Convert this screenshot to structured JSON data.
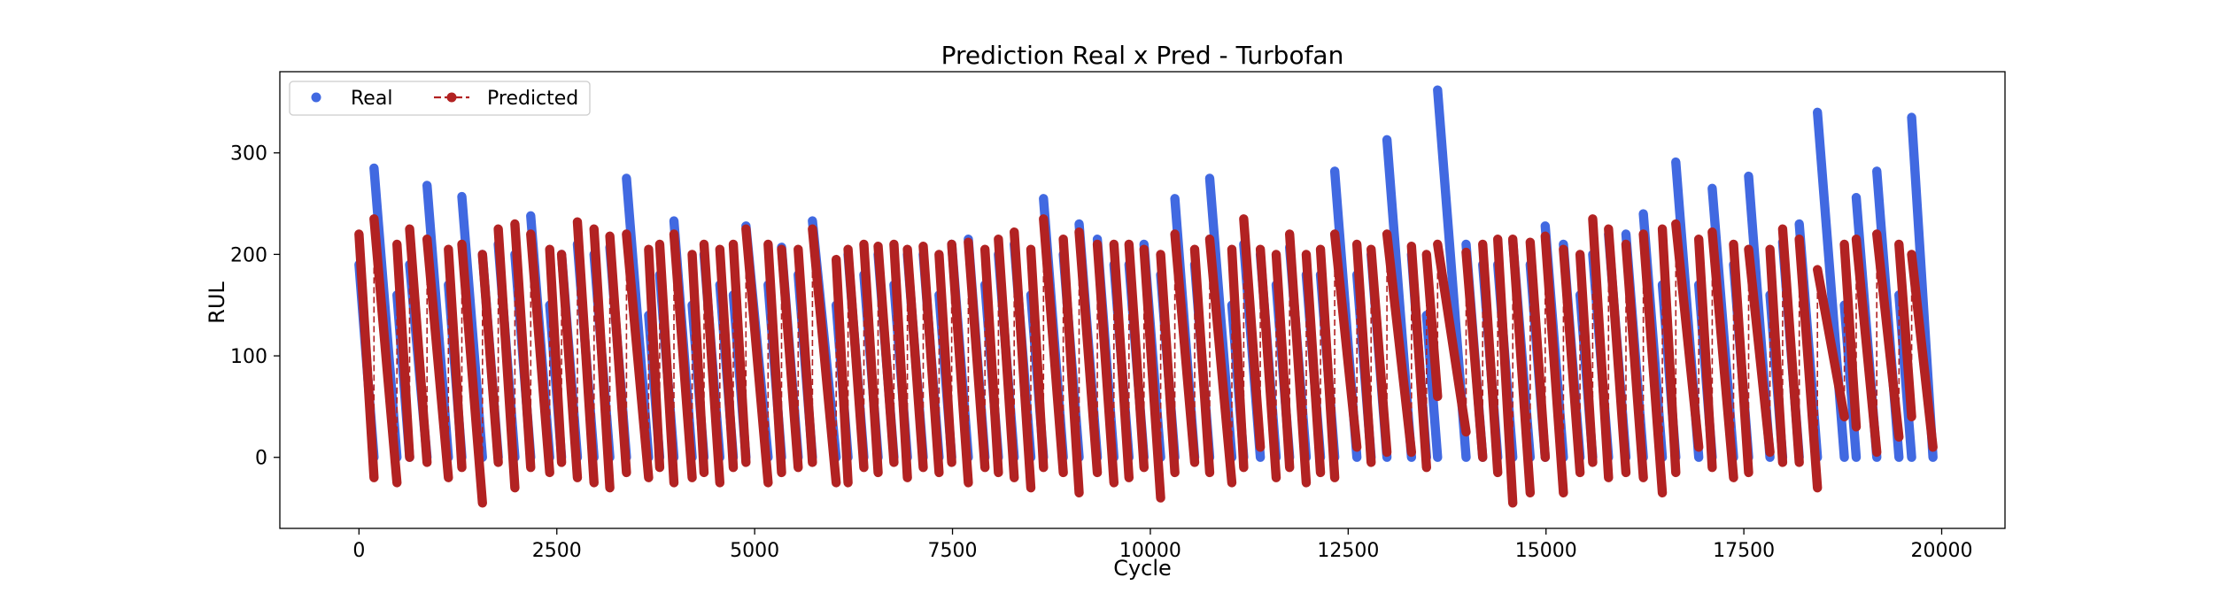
{
  "chart_data": {
    "type": "line",
    "title": "Prediction Real x Pred - Turbofan",
    "xlabel": "Cycle",
    "ylabel": "RUL",
    "xlim": [
      -1000,
      20800
    ],
    "ylim": [
      -70,
      380
    ],
    "xticks": [
      0,
      2500,
      5000,
      7500,
      10000,
      12500,
      15000,
      17500,
      20000
    ],
    "xtick_labels": [
      "0",
      "2500",
      "5000",
      "7500",
      "10000",
      "12500",
      "15000",
      "17500",
      "20000"
    ],
    "yticks": [
      0,
      100,
      200,
      300
    ],
    "ytick_labels": [
      "0",
      "100",
      "200",
      "300"
    ],
    "grid": false,
    "legend_position": "top-left",
    "colors": {
      "real": "#4169e1",
      "predicted": "#b22222"
    },
    "series": [
      {
        "name": "Real",
        "style": "markers",
        "note": "sawtooth RUL per engine unit: each segment [start_cycle, end_cycle, start_rul] descends linearly to 0",
        "segments": [
          [
            0,
            190,
            190
          ],
          [
            190,
            480,
            285
          ],
          [
            480,
            640,
            160
          ],
          [
            640,
            860,
            190
          ],
          [
            860,
            1130,
            268
          ],
          [
            1130,
            1300,
            170
          ],
          [
            1300,
            1560,
            257
          ],
          [
            1560,
            1760,
            200
          ],
          [
            1760,
            1970,
            210
          ],
          [
            1970,
            2170,
            200
          ],
          [
            2170,
            2410,
            238
          ],
          [
            2410,
            2560,
            150
          ],
          [
            2560,
            2760,
            200
          ],
          [
            2760,
            2970,
            210
          ],
          [
            2970,
            3170,
            200
          ],
          [
            3170,
            3380,
            207
          ],
          [
            3380,
            3660,
            275
          ],
          [
            3660,
            3800,
            140
          ],
          [
            3800,
            3980,
            180
          ],
          [
            3980,
            4210,
            233
          ],
          [
            4210,
            4360,
            150
          ],
          [
            4360,
            4560,
            200
          ],
          [
            4560,
            4730,
            170
          ],
          [
            4730,
            4890,
            160
          ],
          [
            4890,
            5170,
            228
          ],
          [
            5170,
            5340,
            170
          ],
          [
            5340,
            5550,
            207
          ],
          [
            5550,
            5730,
            180
          ],
          [
            5730,
            6030,
            233
          ],
          [
            6030,
            6180,
            150
          ],
          [
            6180,
            6380,
            200
          ],
          [
            6380,
            6560,
            180
          ],
          [
            6560,
            6760,
            200
          ],
          [
            6760,
            6930,
            170
          ],
          [
            6930,
            7130,
            200
          ],
          [
            7130,
            7330,
            200
          ],
          [
            7330,
            7490,
            160
          ],
          [
            7490,
            7700,
            210
          ],
          [
            7700,
            7910,
            215
          ],
          [
            7910,
            8080,
            170
          ],
          [
            8080,
            8280,
            200
          ],
          [
            8280,
            8490,
            210
          ],
          [
            8490,
            8650,
            160
          ],
          [
            8650,
            8900,
            255
          ],
          [
            8900,
            9100,
            200
          ],
          [
            9100,
            9330,
            230
          ],
          [
            9330,
            9540,
            215
          ],
          [
            9540,
            9730,
            190
          ],
          [
            9730,
            9920,
            190
          ],
          [
            9920,
            10130,
            210
          ],
          [
            10130,
            10310,
            180
          ],
          [
            10310,
            10560,
            255
          ],
          [
            10560,
            10750,
            190
          ],
          [
            10750,
            11030,
            275
          ],
          [
            11030,
            11180,
            150
          ],
          [
            11180,
            11390,
            210
          ],
          [
            11390,
            11590,
            200
          ],
          [
            11590,
            11760,
            170
          ],
          [
            11760,
            11970,
            207
          ],
          [
            11970,
            12150,
            180
          ],
          [
            12150,
            12330,
            180
          ],
          [
            12330,
            12610,
            282
          ],
          [
            12610,
            12790,
            180
          ],
          [
            12790,
            12990,
            200
          ],
          [
            12990,
            13300,
            313
          ],
          [
            13300,
            13490,
            200
          ],
          [
            13490,
            13630,
            140
          ],
          [
            13630,
            13990,
            362
          ],
          [
            13990,
            14200,
            210
          ],
          [
            14200,
            14390,
            190
          ],
          [
            14390,
            14580,
            190
          ],
          [
            14580,
            14800,
            213
          ],
          [
            14800,
            14990,
            190
          ],
          [
            14990,
            15220,
            228
          ],
          [
            15220,
            15430,
            210
          ],
          [
            15430,
            15590,
            160
          ],
          [
            15590,
            15790,
            200
          ],
          [
            15790,
            16010,
            220
          ],
          [
            16010,
            16230,
            220
          ],
          [
            16230,
            16470,
            240
          ],
          [
            16470,
            16640,
            170
          ],
          [
            16640,
            16930,
            291
          ],
          [
            16930,
            17100,
            170
          ],
          [
            17100,
            17370,
            265
          ],
          [
            17370,
            17560,
            190
          ],
          [
            17560,
            17830,
            277
          ],
          [
            17830,
            17990,
            160
          ],
          [
            17990,
            18200,
            212
          ],
          [
            18200,
            18430,
            230
          ],
          [
            18430,
            18770,
            340
          ],
          [
            18770,
            18920,
            150
          ],
          [
            18920,
            19180,
            256
          ],
          [
            19180,
            19460,
            282
          ],
          [
            19460,
            19620,
            160
          ],
          [
            19620,
            19890,
            335
          ]
        ]
      },
      {
        "name": "Predicted",
        "style": "dashed line with markers",
        "note": "predicted RUL per unit: segments [start_cycle, end_cycle, start_rul, end_rul]",
        "segments": [
          [
            0,
            190,
            220,
            -20
          ],
          [
            190,
            480,
            235,
            -25
          ],
          [
            480,
            640,
            210,
            0
          ],
          [
            640,
            860,
            225,
            -5
          ],
          [
            860,
            1130,
            215,
            -20
          ],
          [
            1130,
            1300,
            205,
            -10
          ],
          [
            1300,
            1560,
            210,
            -45
          ],
          [
            1560,
            1760,
            200,
            -5
          ],
          [
            1760,
            1970,
            225,
            -30
          ],
          [
            1970,
            2170,
            230,
            -10
          ],
          [
            2170,
            2410,
            220,
            -15
          ],
          [
            2410,
            2560,
            205,
            -5
          ],
          [
            2560,
            2760,
            200,
            -20
          ],
          [
            2760,
            2970,
            232,
            -25
          ],
          [
            2970,
            3170,
            225,
            -30
          ],
          [
            3170,
            3380,
            218,
            -15
          ],
          [
            3380,
            3660,
            220,
            -20
          ],
          [
            3660,
            3800,
            205,
            -10
          ],
          [
            3800,
            3980,
            210,
            -25
          ],
          [
            3980,
            4210,
            220,
            -20
          ],
          [
            4210,
            4360,
            200,
            -15
          ],
          [
            4360,
            4560,
            210,
            -25
          ],
          [
            4560,
            4730,
            205,
            -10
          ],
          [
            4730,
            4890,
            210,
            -5
          ],
          [
            4890,
            5170,
            225,
            -25
          ],
          [
            5170,
            5340,
            210,
            -15
          ],
          [
            5340,
            5550,
            205,
            -10
          ],
          [
            5550,
            5730,
            205,
            -5
          ],
          [
            5730,
            6030,
            225,
            -25
          ],
          [
            6030,
            6180,
            195,
            -25
          ],
          [
            6180,
            6380,
            205,
            -10
          ],
          [
            6380,
            6560,
            210,
            -15
          ],
          [
            6560,
            6760,
            208,
            -5
          ],
          [
            6760,
            6930,
            210,
            -20
          ],
          [
            6930,
            7130,
            205,
            -10
          ],
          [
            7130,
            7330,
            208,
            -15
          ],
          [
            7330,
            7490,
            200,
            -5
          ],
          [
            7490,
            7700,
            210,
            -25
          ],
          [
            7700,
            7910,
            212,
            -10
          ],
          [
            7910,
            8080,
            205,
            -15
          ],
          [
            8080,
            8280,
            215,
            -20
          ],
          [
            8280,
            8490,
            222,
            -30
          ],
          [
            8490,
            8650,
            205,
            -10
          ],
          [
            8650,
            8900,
            235,
            -15
          ],
          [
            8900,
            9100,
            215,
            -35
          ],
          [
            9100,
            9330,
            222,
            -15
          ],
          [
            9330,
            9540,
            210,
            -25
          ],
          [
            9540,
            9730,
            210,
            -20
          ],
          [
            9730,
            9920,
            210,
            -10
          ],
          [
            9920,
            10130,
            205,
            -40
          ],
          [
            10130,
            10310,
            200,
            -15
          ],
          [
            10310,
            10560,
            220,
            -5
          ],
          [
            10560,
            10750,
            205,
            -15
          ],
          [
            10750,
            11030,
            215,
            -25
          ],
          [
            11030,
            11180,
            205,
            -10
          ],
          [
            11180,
            11390,
            235,
            10
          ],
          [
            11390,
            11590,
            205,
            -20
          ],
          [
            11590,
            11760,
            200,
            -10
          ],
          [
            11760,
            11970,
            220,
            -25
          ],
          [
            11970,
            12150,
            200,
            -15
          ],
          [
            12150,
            12330,
            205,
            -20
          ],
          [
            12330,
            12610,
            220,
            10
          ],
          [
            12610,
            12790,
            210,
            -5
          ],
          [
            12790,
            12990,
            205,
            5
          ],
          [
            12990,
            13300,
            220,
            5
          ],
          [
            13300,
            13490,
            208,
            -10
          ],
          [
            13490,
            13630,
            200,
            60
          ],
          [
            13630,
            13990,
            210,
            25
          ],
          [
            13990,
            14200,
            202,
            0
          ],
          [
            14200,
            14390,
            210,
            -15
          ],
          [
            14390,
            14580,
            215,
            -45
          ],
          [
            14580,
            14800,
            215,
            -35
          ],
          [
            14800,
            14990,
            212,
            0
          ],
          [
            14990,
            15220,
            218,
            -35
          ],
          [
            15220,
            15430,
            205,
            -15
          ],
          [
            15430,
            15590,
            200,
            -5
          ],
          [
            15590,
            15790,
            235,
            -20
          ],
          [
            15790,
            16010,
            225,
            -15
          ],
          [
            16010,
            16230,
            210,
            -20
          ],
          [
            16230,
            16470,
            220,
            -35
          ],
          [
            16470,
            16640,
            225,
            -15
          ],
          [
            16640,
            16930,
            230,
            10
          ],
          [
            16930,
            17100,
            215,
            -10
          ],
          [
            17100,
            17370,
            222,
            -20
          ],
          [
            17370,
            17560,
            210,
            -15
          ],
          [
            17560,
            17830,
            205,
            5
          ],
          [
            17830,
            17990,
            205,
            -5
          ],
          [
            17990,
            18200,
            225,
            -5
          ],
          [
            18200,
            18430,
            215,
            -30
          ],
          [
            18430,
            18770,
            185,
            40
          ],
          [
            18770,
            18920,
            210,
            30
          ],
          [
            18920,
            19180,
            215,
            5
          ],
          [
            19180,
            19460,
            220,
            20
          ],
          [
            19460,
            19620,
            210,
            40
          ],
          [
            19620,
            19890,
            200,
            10
          ]
        ]
      }
    ]
  }
}
